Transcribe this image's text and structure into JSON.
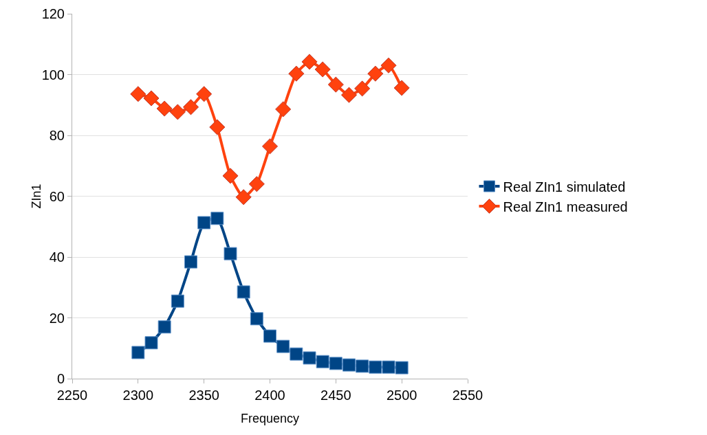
{
  "chart_data": {
    "type": "line",
    "xlabel": "Frequency",
    "ylabel": "ZIn1",
    "x": [
      2300,
      2310,
      2320,
      2330,
      2340,
      2350,
      2360,
      2370,
      2380,
      2390,
      2400,
      2410,
      2420,
      2430,
      2440,
      2450,
      2460,
      2470,
      2480,
      2490,
      2500
    ],
    "series": [
      {
        "name": "Real ZIn1 simulated",
        "color": "#004586",
        "marker": "square",
        "values": [
          8.6,
          11.8,
          17,
          25.5,
          38.4,
          51.3,
          52.7,
          41.1,
          28.5,
          19.7,
          14,
          10.6,
          8.1,
          6.8,
          5.6,
          5,
          4.5,
          4.1,
          3.8,
          3.8,
          3.6
        ]
      },
      {
        "name": "Real ZIn1 measured",
        "color": "#ff420e",
        "marker": "diamond",
        "values": [
          93.6,
          92.2,
          88.8,
          87.7,
          89.3,
          93.6,
          82.7,
          66.7,
          59.7,
          64,
          76.4,
          88.6,
          100.3,
          104.2,
          101.7,
          96.7,
          93.3,
          95.4,
          100.3,
          103,
          95.6
        ]
      }
    ],
    "xlim": [
      2250,
      2550
    ],
    "xticks": [
      2250,
      2300,
      2350,
      2400,
      2450,
      2500,
      2550
    ],
    "ylim": [
      0,
      120
    ],
    "yticks": [
      0,
      20,
      40,
      60,
      80,
      100,
      120
    ],
    "grid": "y",
    "legend": "right",
    "line_style": "solid"
  }
}
